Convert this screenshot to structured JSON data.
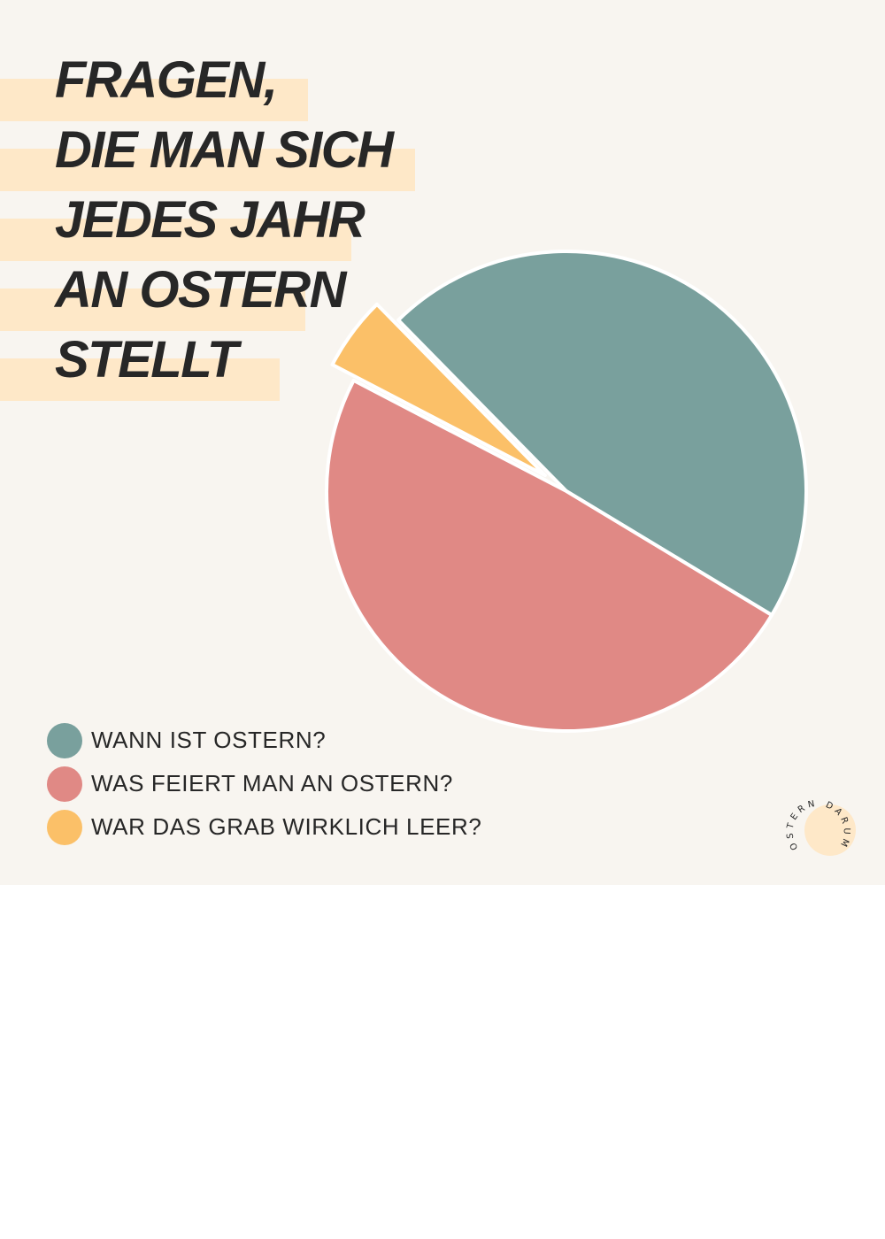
{
  "title_lines": [
    "FRAGEN,",
    "DIE MAN SICH",
    "JEDES JAHR",
    "AN OSTERN",
    "STELLT"
  ],
  "chart_data": {
    "type": "pie",
    "title": "FRAGEN, DIE MAN SICH JEDES JAHR AN OSTERN STELLT",
    "legend_position": "bottom-left",
    "slices": [
      {
        "label": "WANN IST OSTERN?",
        "value": 46,
        "color": "#79a09d"
      },
      {
        "label": "WAS FEIERT MAN AN OSTERN?",
        "value": 49,
        "color": "#e08985"
      },
      {
        "label": "WAR DAS GRAB WIRKLICH LEER?",
        "value": 5,
        "color": "#fbc068",
        "exploded": true
      }
    ]
  },
  "logo": {
    "text": "OSTERN DARUM",
    "accent_color": "#fee8c8"
  }
}
